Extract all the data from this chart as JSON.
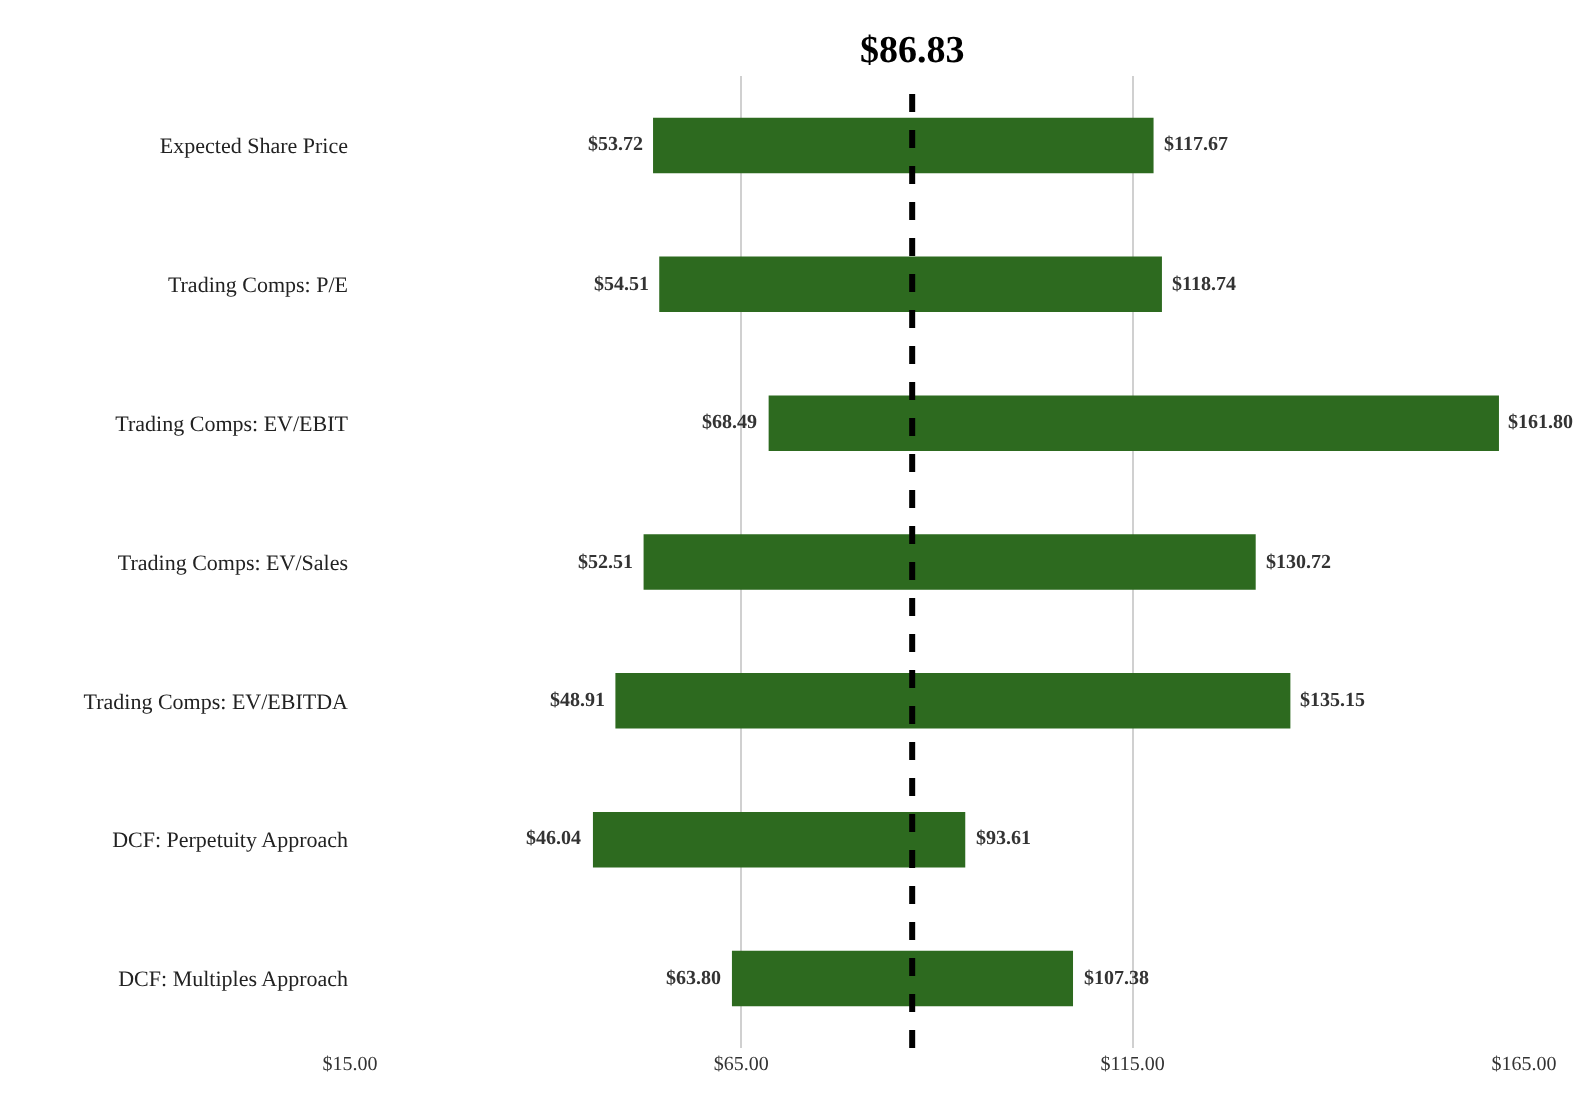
{
  "chart_data": {
    "type": "bar",
    "orientation": "horizontal",
    "categories": [
      "Expected Share Price",
      "Trading Comps: P/E",
      "Trading Comps: EV/EBIT",
      "Trading Comps: EV/Sales",
      "Trading Comps: EV/EBITDA",
      "DCF: Perpetuity Approach",
      "DCF: Multiples Approach"
    ],
    "base": [
      53.72,
      54.51,
      68.49,
      52.51,
      48.91,
      46.04,
      63.8
    ],
    "values": [
      63.95,
      64.23,
      93.31,
      78.21,
      86.24,
      47.57,
      43.58
    ],
    "color": "#2d6a1f",
    "xlim": [
      15,
      165
    ],
    "xticks": [
      {
        "value": 15,
        "label": "$15.00"
      },
      {
        "value": 65,
        "label": "$65.00"
      },
      {
        "value": 115,
        "label": "$115.00"
      },
      {
        "value": 165,
        "label": "$165.00"
      }
    ],
    "grid": "x",
    "ref_lines": [
      {
        "axis": "x",
        "value": 86.83,
        "label": "$86.83",
        "line_style": "dashed",
        "color": "#000000"
      }
    ],
    "annotations": [
      {
        "text": "$53.72",
        "x": 53.72,
        "y": "Expected Share Price"
      },
      {
        "text": "$117.67",
        "x": 117.67,
        "y": "Expected Share Price"
      },
      {
        "text": "$54.51",
        "x": 54.51,
        "y": "Trading Comps: P/E"
      },
      {
        "text": "$118.74",
        "x": 118.74,
        "y": "Trading Comps: P/E"
      },
      {
        "text": "$68.49",
        "x": 68.49,
        "y": "Trading Comps: EV/EBIT"
      },
      {
        "text": "$161.80",
        "x": 161.8,
        "y": "Trading Comps: EV/EBIT"
      },
      {
        "text": "$52.51",
        "x": 52.51,
        "y": "Trading Comps: EV/Sales"
      },
      {
        "text": "$130.72",
        "x": 130.72,
        "y": "Trading Comps: EV/Sales"
      },
      {
        "text": "$48.91",
        "x": 48.91,
        "y": "Trading Comps: EV/EBITDA"
      },
      {
        "text": "$135.15",
        "x": 135.15,
        "y": "Trading Comps: EV/EBITDA"
      },
      {
        "text": "$46.04",
        "x": 46.04,
        "y": "DCF: Perpetuity Approach"
      },
      {
        "text": "$93.61",
        "x": 93.61,
        "y": "DCF: Perpetuity Approach"
      },
      {
        "text": "$63.80",
        "x": 63.8,
        "y": "DCF: Multiples Approach"
      },
      {
        "text": "$107.38",
        "x": 107.38,
        "y": "DCF: Multiples Approach"
      }
    ]
  }
}
